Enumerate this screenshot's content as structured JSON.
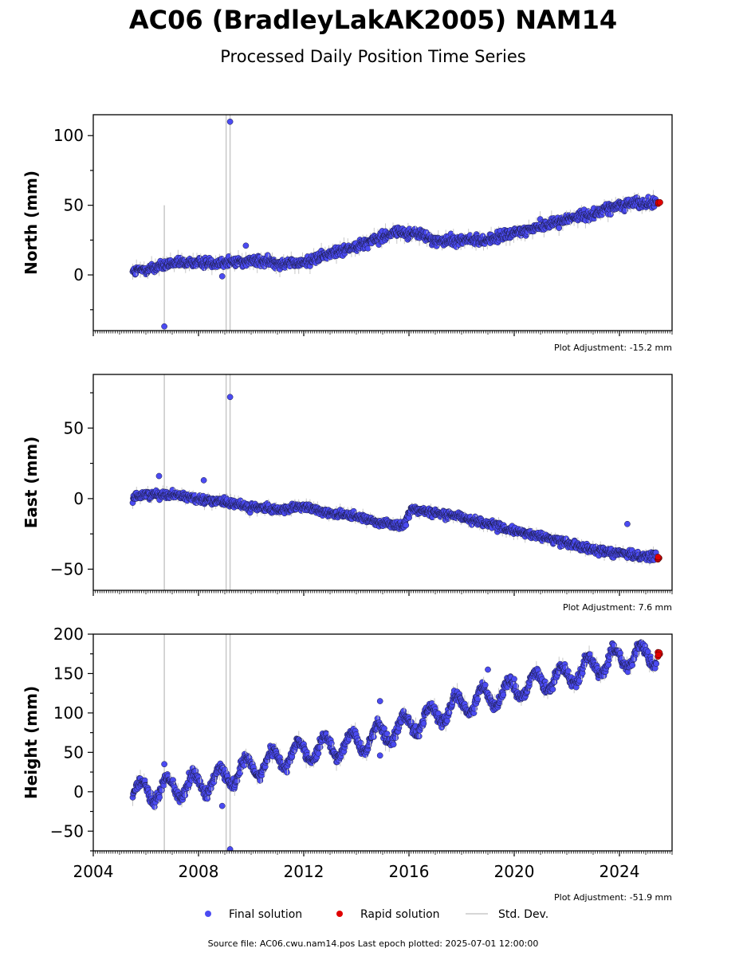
{
  "figure": {
    "title": "AC06 (BradleyLakAK2005) NAM14",
    "subtitle": "Processed Daily Position Time Series",
    "footer": "Source file: AC06.cwu.nam14.pos  Last epoch plotted: 2025-07-01 12:00:00",
    "colors": {
      "final": "#4b4bf2",
      "rapid": "#e00000",
      "stddev": "#c8c8c8",
      "edge": "#1a1a40"
    }
  },
  "legend": {
    "placement": "bottom-center",
    "items": [
      {
        "label": "Final solution",
        "color": "#4b4bf2"
      },
      {
        "label": "Rapid solution",
        "color": "#e00000"
      },
      {
        "label": "Std. Dev.",
        "color": "#c8c8c8"
      }
    ]
  },
  "x_axis": {
    "xlim": [
      2004.0,
      2026.0
    ],
    "tick_labels": [
      "2004",
      "2008",
      "2012",
      "2016",
      "2020",
      "2024"
    ],
    "tick_values": [
      2004,
      2008,
      2012,
      2016,
      2020,
      2024
    ],
    "minor_ticks": "monthly"
  },
  "chart_data": [
    {
      "type": "scatter",
      "ylabel": "North (mm)",
      "ylim": [
        -40,
        115
      ],
      "yticks": [
        0,
        50,
        100
      ],
      "adjustment": "Plot Adjustment: -15.2 mm",
      "series": [
        {
          "name": "Final solution",
          "x": [
            2005.5,
            2006.0,
            2006.5,
            2007.0,
            2008.0,
            2009.0,
            2010.0,
            2011.0,
            2011.8,
            2012.5,
            2013.5,
            2014.5,
            2015.5,
            2016.0,
            2016.5,
            2017.0,
            2018.0,
            2019.0,
            2020.0,
            2021.0,
            2022.0,
            2023.0,
            2024.0,
            2024.5,
            2025.0,
            2025.4
          ],
          "y": [
            2,
            4,
            6,
            8,
            9,
            9,
            10,
            9,
            8,
            12,
            18,
            24,
            31,
            30,
            29,
            24,
            25,
            25,
            30,
            35,
            40,
            44,
            50,
            52,
            51,
            51
          ]
        },
        {
          "name": "Rapid solution",
          "x": [
            2025.5
          ],
          "y": [
            51
          ]
        }
      ],
      "outliers": [
        {
          "x": 2006.7,
          "y": -37
        },
        {
          "x": 2009.2,
          "y": 110
        },
        {
          "x": 2008.9,
          "y": -1
        },
        {
          "x": 2009.8,
          "y": 21
        }
      ],
      "stddev_bars": [
        {
          "x": 2006.7,
          "lo": -37,
          "hi": 50
        },
        {
          "x": 2009.05,
          "lo": -40,
          "hi": 115
        },
        {
          "x": 2009.2,
          "lo": -40,
          "hi": 115
        }
      ],
      "scatter_mm": 2.6,
      "seasonal": {
        "amp": 0,
        "phase": 0
      }
    },
    {
      "type": "scatter",
      "ylabel": "East (mm)",
      "ylim": [
        -65,
        88
      ],
      "yticks": [
        -50,
        0,
        50
      ],
      "adjustment": "Plot Adjustment: 7.6 mm",
      "series": [
        {
          "name": "Final solution",
          "x": [
            2005.5,
            2006.0,
            2007.0,
            2008.0,
            2009.0,
            2010.0,
            2011.0,
            2012.0,
            2013.0,
            2014.0,
            2015.0,
            2015.8,
            2016.1,
            2017.0,
            2018.0,
            2019.0,
            2020.0,
            2021.0,
            2022.0,
            2023.0,
            2024.0,
            2025.0,
            2025.4
          ],
          "y": [
            1,
            3,
            3,
            0,
            -3,
            -6,
            -8,
            -6,
            -10,
            -13,
            -17,
            -20,
            -7,
            -10,
            -13,
            -18,
            -23,
            -27,
            -31,
            -36,
            -39,
            -41,
            -41
          ]
        },
        {
          "name": "Rapid solution",
          "x": [
            2025.5
          ],
          "y": [
            -42
          ]
        }
      ],
      "outliers": [
        {
          "x": 2009.2,
          "y": 72
        },
        {
          "x": 2006.5,
          "y": 16
        },
        {
          "x": 2008.2,
          "y": 13
        },
        {
          "x": 2024.3,
          "y": -18
        }
      ],
      "stddev_bars": [
        {
          "x": 2006.7,
          "lo": -65,
          "hi": 88
        },
        {
          "x": 2009.05,
          "lo": -65,
          "hi": 88
        },
        {
          "x": 2009.2,
          "lo": -65,
          "hi": 88
        }
      ],
      "scatter_mm": 2.0,
      "seasonal": {
        "amp": 0,
        "phase": 0
      }
    },
    {
      "type": "scatter",
      "ylabel": "Height (mm)",
      "ylim": [
        -75,
        200
      ],
      "yticks": [
        -50,
        0,
        50,
        100,
        150,
        200
      ],
      "adjustment": "Plot Adjustment: -51.9 mm",
      "series": [
        {
          "name": "Final solution",
          "x": [
            2005.5,
            2007.0,
            2008.5,
            2010.0,
            2012.0,
            2014.0,
            2016.0,
            2018.0,
            2020.0,
            2022.0,
            2024.0,
            2025.4
          ],
          "y": [
            0,
            5,
            12,
            30,
            52,
            62,
            85,
            110,
            130,
            148,
            170,
            175
          ]
        },
        {
          "name": "Rapid solution",
          "x": [
            2025.5
          ],
          "y": [
            174
          ]
        }
      ],
      "outliers": [
        {
          "x": 2006.7,
          "y": 35
        },
        {
          "x": 2008.9,
          "y": -18
        },
        {
          "x": 2009.2,
          "y": -73
        },
        {
          "x": 2014.9,
          "y": 115
        },
        {
          "x": 2014.9,
          "y": 46
        },
        {
          "x": 2019.0,
          "y": 155
        }
      ],
      "stddev_bars": [
        {
          "x": 2006.7,
          "lo": -75,
          "hi": 200
        },
        {
          "x": 2009.05,
          "lo": -75,
          "hi": 200
        },
        {
          "x": 2009.2,
          "lo": -75,
          "hi": 200
        }
      ],
      "scatter_mm": 5.0,
      "seasonal": {
        "amp": 14,
        "phase": 0.55
      }
    }
  ]
}
